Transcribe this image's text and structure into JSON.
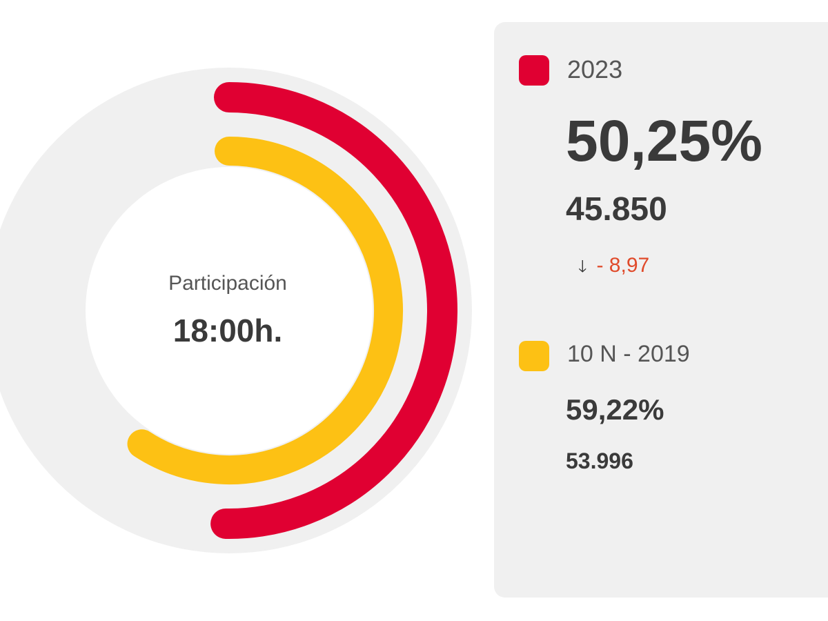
{
  "chart_data": {
    "type": "radial-bar",
    "center": {
      "label": "Participación",
      "time": "18:00h."
    },
    "max": 100,
    "series": [
      {
        "name": "2023",
        "percent_label": "50,25%",
        "value": 50.25,
        "votes": "45.850",
        "change": "- 8,97",
        "color": "#e00032"
      },
      {
        "name": "10 N - 2019",
        "percent_label": "59,22%",
        "value": 59.22,
        "votes": "53.996",
        "color": "#fdc114"
      }
    ],
    "track_color": "#f0f0f0"
  }
}
